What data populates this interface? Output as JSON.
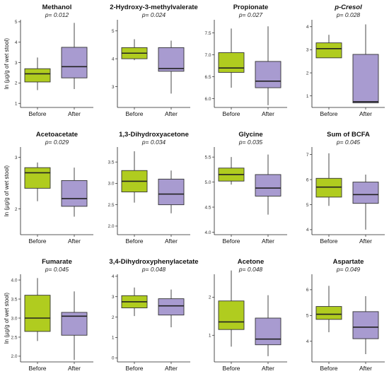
{
  "colors": {
    "before": "#b0cc1f",
    "after": "#a89bd0"
  },
  "chart_data": [
    {
      "type": "boxplot",
      "title": "Methanol",
      "title_italic": false,
      "pvalue": "p= 0.012",
      "ylabel": "ln (µg/g of wet stool)",
      "ylim": [
        0.8,
        5.1
      ],
      "yticks": [
        "1",
        "2",
        "3",
        "4",
        "5"
      ],
      "categories": [
        "Before",
        "After"
      ],
      "boxes": [
        {
          "min": 1.65,
          "q1": 2.05,
          "median": 2.45,
          "q3": 2.7,
          "max": 3.25
        },
        {
          "min": 1.7,
          "q1": 2.25,
          "median": 2.8,
          "q3": 3.75,
          "max": 4.95
        }
      ]
    },
    {
      "type": "boxplot",
      "title": "2-Hydroxy-3-methylvalerate",
      "title_italic": false,
      "pvalue": "p= 0.024",
      "ylabel": "",
      "ylim": [
        2.25,
        5.4
      ],
      "yticks": [
        "3",
        "4",
        "5"
      ],
      "categories": [
        "Before",
        "After"
      ],
      "boxes": [
        {
          "min": 3.95,
          "q1": 4.0,
          "median": 4.2,
          "q3": 4.4,
          "max": 4.7
        },
        {
          "min": 2.75,
          "q1": 3.55,
          "median": 3.65,
          "q3": 4.4,
          "max": 4.65
        }
      ]
    },
    {
      "type": "boxplot",
      "title": "Propionate",
      "title_italic": false,
      "pvalue": "p= 0.027",
      "ylabel": "",
      "ylim": [
        5.8,
        7.8
      ],
      "yticks": [
        "6.0",
        "6.5",
        "7.0",
        "7.5"
      ],
      "categories": [
        "Before",
        "After"
      ],
      "boxes": [
        {
          "min": 6.25,
          "q1": 6.6,
          "median": 6.7,
          "q3": 7.05,
          "max": 7.6
        },
        {
          "min": 5.85,
          "q1": 6.25,
          "median": 6.4,
          "q3": 6.85,
          "max": 7.65
        }
      ]
    },
    {
      "type": "boxplot",
      "title": "p-Cresol",
      "title_italic": true,
      "pvalue": "p= 0.028",
      "ylabel": "",
      "ylim": [
        0.5,
        4.3
      ],
      "yticks": [
        "1",
        "2",
        "3",
        "4"
      ],
      "categories": [
        "Before",
        "After"
      ],
      "boxes": [
        {
          "min": 2.65,
          "q1": 2.65,
          "median": 3.05,
          "q3": 3.3,
          "max": 3.65
        },
        {
          "min": 0.7,
          "q1": 0.7,
          "median": 0.75,
          "q3": 2.8,
          "max": 4.1
        }
      ]
    },
    {
      "type": "boxplot",
      "title": "Acetoacetate",
      "title_italic": false,
      "pvalue": "p= 0.029",
      "ylabel": "ln (µg/g of wet stool)",
      "ylim": [
        1.5,
        3.2
      ],
      "yticks": [
        "2",
        "3"
      ],
      "categories": [
        "Before",
        "After"
      ],
      "boxes": [
        {
          "min": 2.15,
          "q1": 2.4,
          "median": 2.7,
          "q3": 2.8,
          "max": 2.9
        },
        {
          "min": 1.85,
          "q1": 2.05,
          "median": 2.2,
          "q3": 2.55,
          "max": 2.8
        }
      ]
    },
    {
      "type": "boxplot",
      "title": "1,3-Dihydroxyacetone",
      "title_italic": false,
      "pvalue": "p= 0.034",
      "ylabel": "",
      "ylim": [
        1.8,
        3.85
      ],
      "yticks": [
        "2.0",
        "2.5",
        "3.0",
        "3.5"
      ],
      "categories": [
        "Before",
        "After"
      ],
      "boxes": [
        {
          "min": 2.55,
          "q1": 2.8,
          "median": 3.05,
          "q3": 3.3,
          "max": 3.75
        },
        {
          "min": 2.3,
          "q1": 2.5,
          "median": 2.75,
          "q3": 3.1,
          "max": 3.3
        }
      ]
    },
    {
      "type": "boxplot",
      "title": "Glycine",
      "title_italic": false,
      "pvalue": "p= 0.035",
      "ylabel": "",
      "ylim": [
        3.95,
        5.7
      ],
      "yticks": [
        "4.0",
        "4.5",
        "5.0",
        "5.5"
      ],
      "categories": [
        "Before",
        "After"
      ],
      "boxes": [
        {
          "min": 4.95,
          "q1": 5.02,
          "median": 5.15,
          "q3": 5.28,
          "max": 5.5
        },
        {
          "min": 4.35,
          "q1": 4.72,
          "median": 4.88,
          "q3": 5.15,
          "max": 5.55
        }
      ]
    },
    {
      "type": "boxplot",
      "title": "Sum of BCFA",
      "title_italic": false,
      "pvalue": "p= 0.045",
      "ylabel": "",
      "ylim": [
        3.8,
        7.3
      ],
      "yticks": [
        "4",
        "5",
        "6",
        "7"
      ],
      "categories": [
        "Before",
        "After"
      ],
      "boxes": [
        {
          "min": 4.95,
          "q1": 5.3,
          "median": 5.7,
          "q3": 6.05,
          "max": 7.05
        },
        {
          "min": 4.0,
          "q1": 5.05,
          "median": 5.4,
          "q3": 5.9,
          "max": 6.2
        }
      ]
    },
    {
      "type": "boxplot",
      "title": "Fumarate",
      "title_italic": false,
      "pvalue": "p= 0.045",
      "ylabel": "ln (µg/g of wet stool)",
      "ylim": [
        1.85,
        4.15
      ],
      "yticks": [
        "2.0",
        "2.5",
        "3.0",
        "3.5",
        "4.0"
      ],
      "categories": [
        "Before",
        "After"
      ],
      "boxes": [
        {
          "min": 2.4,
          "q1": 2.65,
          "median": 3.0,
          "q3": 3.6,
          "max": 4.05
        },
        {
          "min": 1.9,
          "q1": 2.55,
          "median": 3.05,
          "q3": 3.15,
          "max": 3.7
        }
      ]
    },
    {
      "type": "boxplot",
      "title": "3,4-Dihydroxyphenylacetate",
      "title_italic": false,
      "pvalue": "p= 0.048",
      "ylabel": "",
      "ylim": [
        -0.2,
        4.1
      ],
      "yticks": [
        "0",
        "1",
        "2",
        "3",
        "4"
      ],
      "categories": [
        "Before",
        "After"
      ],
      "boxes": [
        {
          "min": 2.05,
          "q1": 2.45,
          "median": 2.75,
          "q3": 3.05,
          "max": 3.45
        },
        {
          "min": 1.5,
          "q1": 2.1,
          "median": 2.55,
          "q3": 2.9,
          "max": 3.35
        }
      ]
    },
    {
      "type": "boxplot",
      "title": "Acetone",
      "title_italic": false,
      "pvalue": "p= 0.048",
      "ylabel": "",
      "ylim": [
        0.3,
        2.6
      ],
      "yticks": [
        "1",
        "2"
      ],
      "categories": [
        "Before",
        "After"
      ],
      "boxes": [
        {
          "min": 0.7,
          "q1": 1.15,
          "median": 1.35,
          "q3": 1.9,
          "max": 2.7
        },
        {
          "min": 0.45,
          "q1": 0.75,
          "median": 0.9,
          "q3": 1.45,
          "max": 2.05
        }
      ]
    },
    {
      "type": "boxplot",
      "title": "Aspartate",
      "title_italic": false,
      "pvalue": "p= 0.049",
      "ylabel": "",
      "ylim": [
        3.2,
        6.6
      ],
      "yticks": [
        "4",
        "5",
        "6"
      ],
      "categories": [
        "Before",
        "After"
      ],
      "boxes": [
        {
          "min": 4.35,
          "q1": 4.85,
          "median": 5.05,
          "q3": 5.35,
          "max": 6.15
        },
        {
          "min": 3.5,
          "q1": 4.1,
          "median": 4.55,
          "q3": 5.15,
          "max": 5.75
        }
      ]
    }
  ]
}
